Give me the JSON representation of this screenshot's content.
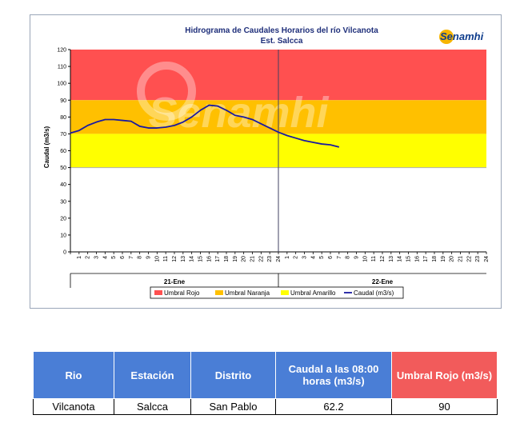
{
  "chart_data": {
    "type": "line",
    "title": "Hidrograma de Caudales Horarios del río Vilcanota",
    "subtitle": "Est. Salcca",
    "ylabel": "Caudal  (m3/s)",
    "ylim": [
      0,
      120
    ],
    "yticks": [
      0,
      10,
      20,
      30,
      40,
      50,
      60,
      70,
      80,
      90,
      100,
      110,
      120
    ],
    "days": [
      "21-Ene",
      "22-Ene"
    ],
    "hour_labels": [
      "1",
      "2",
      "3",
      "4",
      "5",
      "6",
      "7",
      "8",
      "9",
      "10",
      "11",
      "12",
      "13",
      "14",
      "15",
      "16",
      "17",
      "18",
      "19",
      "20",
      "21",
      "22",
      "23",
      "24"
    ],
    "thresholds": [
      {
        "name": "Umbral Rojo",
        "from": 90,
        "to": 120,
        "color": "#ff5050"
      },
      {
        "name": "Umbral Naranja",
        "from": 70,
        "to": 90,
        "color": "#ffc000"
      },
      {
        "name": "Umbral Amarillo",
        "from": 50,
        "to": 70,
        "color": "#ffff00"
      }
    ],
    "series": [
      {
        "name": "Caudal (m3/s)",
        "color": "#1a1aa0",
        "values": [
          70.5,
          72,
          75,
          77,
          78.5,
          78.5,
          78,
          77.5,
          74.5,
          73.5,
          73.5,
          74,
          75,
          77,
          80,
          84,
          87,
          86.5,
          84,
          81,
          80,
          78.5,
          76,
          73.5,
          71,
          69,
          67.5,
          66,
          65,
          64,
          63.5,
          62.2
        ]
      }
    ],
    "legend_position": "bottom",
    "grid": false
  },
  "watermark": "Senamhi",
  "logo": {
    "text": "Senamhi"
  },
  "table": {
    "headers": [
      "Rio",
      "Estación",
      "Distrito",
      "Caudal a las 08:00 horas (m3/s)",
      "Umbral Rojo (m3/s)"
    ],
    "row": [
      "Vilcanota",
      "Salcca",
      "San Pablo",
      "62.2",
      "90"
    ]
  }
}
